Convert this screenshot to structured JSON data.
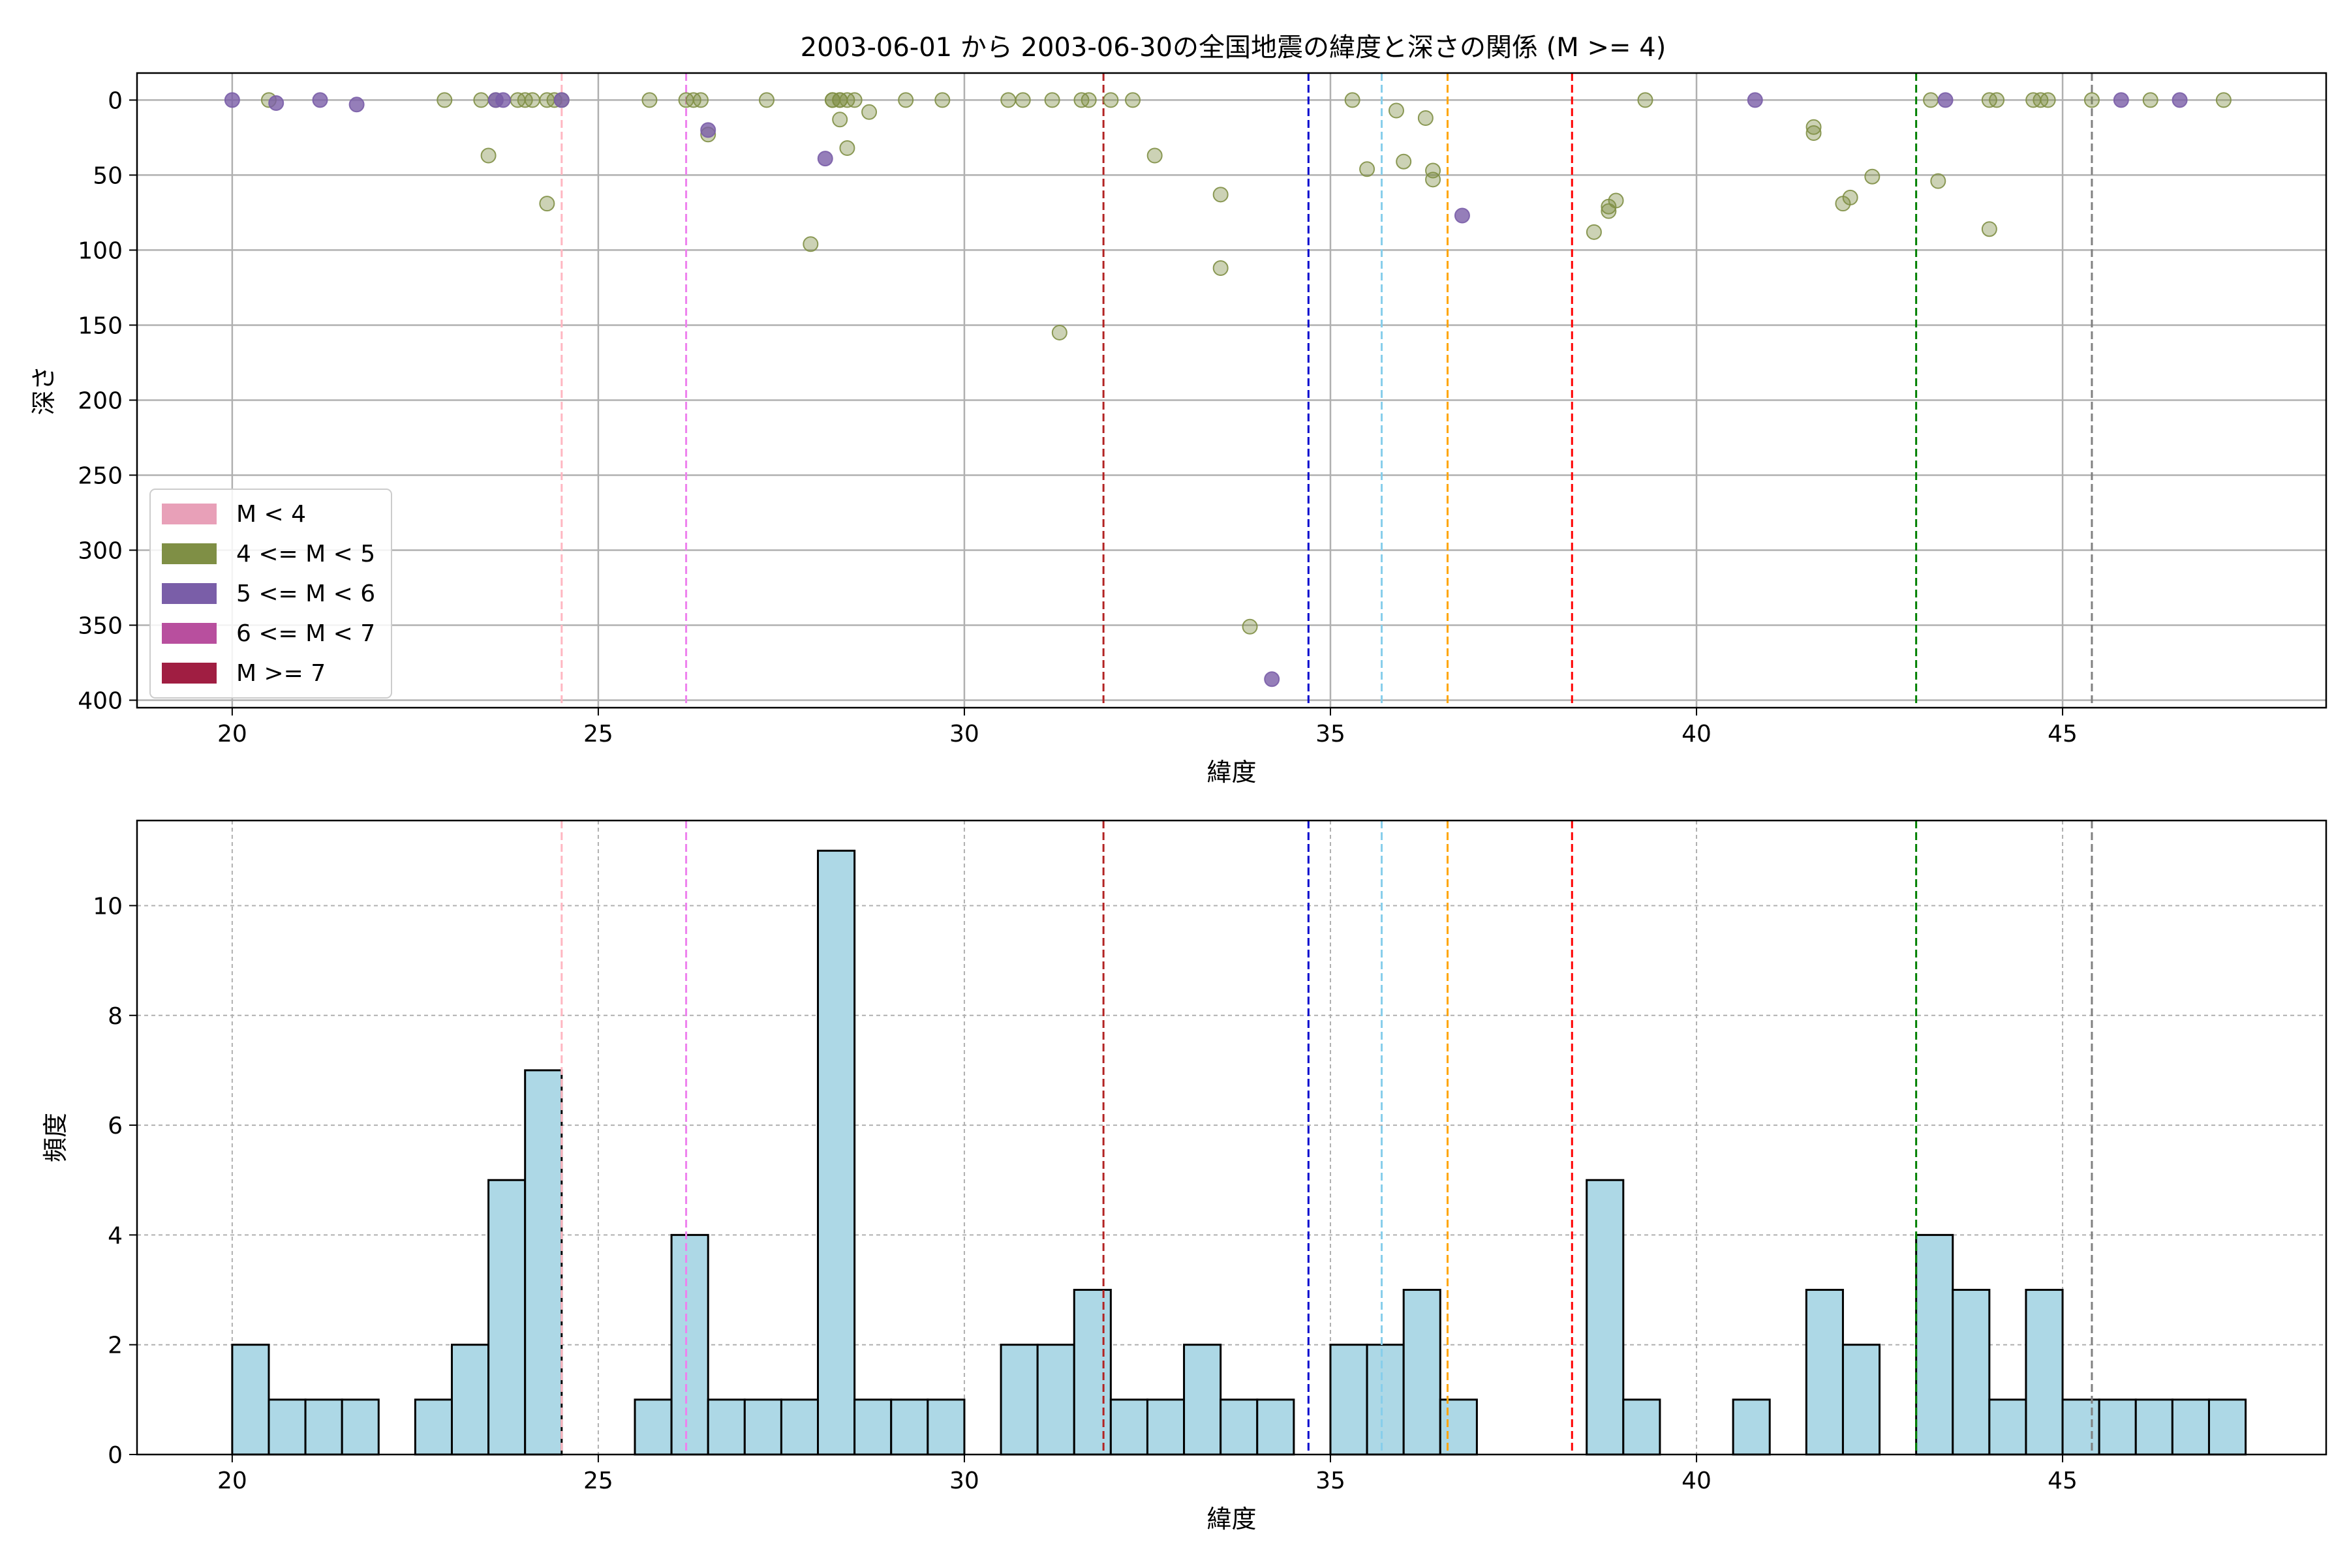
{
  "title": "2003-06-01 から 2003-06-30の全国地震の緯度と深さの関係 (M >= 4)",
  "colors": {
    "scatter_m4_5": "#7f8f45",
    "scatter_m5_6": "#7a5ea8",
    "hist_fill": "#add8e6",
    "hist_edge": "#000000",
    "grid": "#b0b0b0"
  },
  "legend": {
    "items": [
      {
        "label": "M < 4",
        "color": "#e8a0b8"
      },
      {
        "label": "4 <= M < 5",
        "color": "#7f8f45"
      },
      {
        "label": "5 <= M < 6",
        "color": "#7a5ea8"
      },
      {
        "label": "6 <= M < 7",
        "color": "#b84f9e"
      },
      {
        "label": "M >= 7",
        "color": "#a01e42"
      }
    ]
  },
  "chart_data": [
    {
      "type": "scatter",
      "title": "2003-06-01 から 2003-06-30の全国地震の緯度と深さの関係 (M >= 4)",
      "xlabel": "緯度",
      "ylabel": "深さ",
      "xlim": [
        18.7,
        48.6
      ],
      "ylim": [
        405,
        -18
      ],
      "y_inverted": true,
      "xticks": [
        20,
        25,
        30,
        35,
        40,
        45
      ],
      "yticks": [
        0,
        50,
        100,
        150,
        200,
        250,
        300,
        350,
        400
      ],
      "grid": true,
      "legend_position": "lower-left",
      "series": [
        {
          "name": "4 <= M < 5",
          "color": "#7f8f45",
          "points": [
            [
              20.5,
              0
            ],
            [
              22.9,
              0
            ],
            [
              23.4,
              0
            ],
            [
              23.5,
              37
            ],
            [
              23.6,
              0
            ],
            [
              23.9,
              0
            ],
            [
              24.0,
              0
            ],
            [
              24.1,
              0
            ],
            [
              24.3,
              0
            ],
            [
              24.3,
              69
            ],
            [
              24.4,
              0
            ],
            [
              24.5,
              0
            ],
            [
              25.7,
              0
            ],
            [
              26.2,
              0
            ],
            [
              26.3,
              0
            ],
            [
              26.4,
              0
            ],
            [
              26.5,
              23
            ],
            [
              27.3,
              0
            ],
            [
              27.9,
              96
            ],
            [
              28.2,
              0
            ],
            [
              28.2,
              0
            ],
            [
              28.3,
              0
            ],
            [
              28.3,
              13
            ],
            [
              28.3,
              0
            ],
            [
              28.4,
              0
            ],
            [
              28.4,
              32
            ],
            [
              28.5,
              0
            ],
            [
              28.7,
              8
            ],
            [
              29.2,
              0
            ],
            [
              29.7,
              0
            ],
            [
              30.6,
              0
            ],
            [
              30.8,
              0
            ],
            [
              31.2,
              0
            ],
            [
              31.3,
              155
            ],
            [
              31.6,
              0
            ],
            [
              31.7,
              0
            ],
            [
              32.0,
              0
            ],
            [
              32.3,
              0
            ],
            [
              32.6,
              37
            ],
            [
              33.5,
              63
            ],
            [
              33.5,
              112
            ],
            [
              33.9,
              351
            ],
            [
              35.3,
              0
            ],
            [
              35.5,
              46
            ],
            [
              35.9,
              7
            ],
            [
              36.0,
              41
            ],
            [
              36.3,
              12
            ],
            [
              36.4,
              47
            ],
            [
              36.4,
              53
            ],
            [
              38.6,
              88
            ],
            [
              38.8,
              74
            ],
            [
              38.8,
              71
            ],
            [
              38.9,
              67
            ],
            [
              39.3,
              0
            ],
            [
              41.6,
              22
            ],
            [
              41.6,
              18
            ],
            [
              42.0,
              69
            ],
            [
              42.1,
              65
            ],
            [
              42.4,
              51
            ],
            [
              43.2,
              0
            ],
            [
              43.3,
              54
            ],
            [
              44.0,
              86
            ],
            [
              44.0,
              0
            ],
            [
              44.1,
              0
            ],
            [
              44.6,
              0
            ],
            [
              44.7,
              0
            ],
            [
              44.8,
              0
            ],
            [
              45.4,
              0
            ],
            [
              46.2,
              0
            ],
            [
              47.2,
              0
            ]
          ]
        },
        {
          "name": "5 <= M < 6",
          "color": "#7a5ea8",
          "points": [
            [
              20.0,
              0
            ],
            [
              20.6,
              2
            ],
            [
              21.2,
              0
            ],
            [
              21.7,
              3
            ],
            [
              23.6,
              0
            ],
            [
              23.7,
              0
            ],
            [
              24.5,
              0
            ],
            [
              26.5,
              20
            ],
            [
              28.1,
              39
            ],
            [
              34.2,
              386
            ],
            [
              36.8,
              77
            ],
            [
              40.8,
              0
            ],
            [
              43.4,
              0
            ],
            [
              45.8,
              0
            ],
            [
              46.6,
              0
            ]
          ]
        }
      ],
      "vlines": [
        {
          "x": 24.5,
          "color": "#ffb6c1"
        },
        {
          "x": 26.2,
          "color": "#ee82ee"
        },
        {
          "x": 31.9,
          "color": "#b22222"
        },
        {
          "x": 34.7,
          "color": "#0000cd"
        },
        {
          "x": 35.7,
          "color": "#87ceeb"
        },
        {
          "x": 36.6,
          "color": "#ffa500"
        },
        {
          "x": 38.3,
          "color": "#ff0000"
        },
        {
          "x": 43.0,
          "color": "#008000"
        },
        {
          "x": 45.4,
          "color": "#808080"
        }
      ]
    },
    {
      "type": "bar",
      "subtype": "histogram",
      "xlabel": "緯度",
      "ylabel": "頻度",
      "xlim": [
        18.7,
        48.6
      ],
      "ylim": [
        0,
        11.55
      ],
      "xticks": [
        20,
        25,
        30,
        35,
        40,
        45
      ],
      "yticks": [
        0,
        2,
        4,
        6,
        8,
        10
      ],
      "grid": true,
      "bin_start": 20.0,
      "bin_width": 0.5,
      "values": [
        2,
        1,
        1,
        1,
        0,
        1,
        2,
        5,
        7,
        0,
        0,
        1,
        4,
        1,
        1,
        1,
        11,
        1,
        1,
        1,
        0,
        2,
        2,
        3,
        1,
        1,
        2,
        1,
        1,
        0,
        2,
        2,
        3,
        1,
        0,
        0,
        0,
        5,
        1,
        0,
        0,
        1,
        0,
        3,
        2,
        0,
        4,
        3,
        1,
        3,
        1,
        1,
        1,
        1,
        1
      ],
      "vlines": [
        {
          "x": 24.5,
          "color": "#ffb6c1"
        },
        {
          "x": 26.2,
          "color": "#ee82ee"
        },
        {
          "x": 31.9,
          "color": "#b22222"
        },
        {
          "x": 34.7,
          "color": "#0000cd"
        },
        {
          "x": 35.7,
          "color": "#87ceeb"
        },
        {
          "x": 36.6,
          "color": "#ffa500"
        },
        {
          "x": 38.3,
          "color": "#ff0000"
        },
        {
          "x": 43.0,
          "color": "#008000"
        },
        {
          "x": 45.4,
          "color": "#808080"
        }
      ]
    }
  ]
}
